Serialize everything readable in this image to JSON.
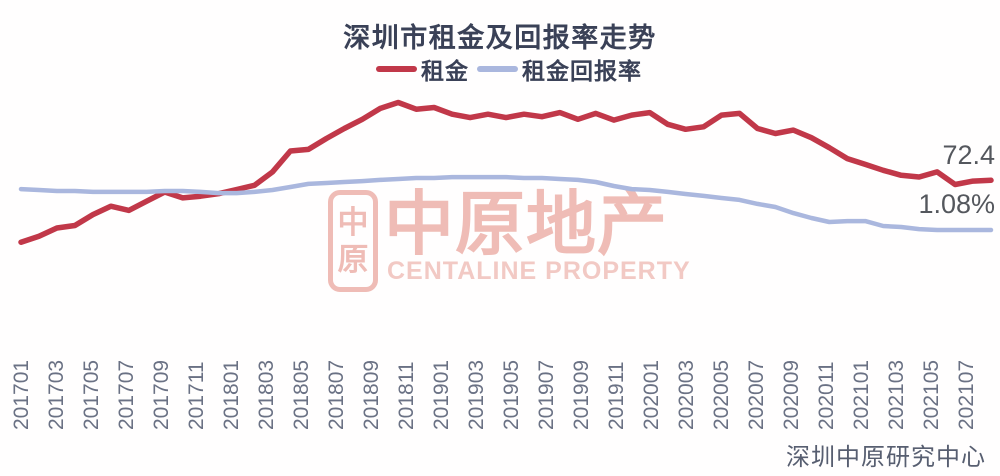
{
  "title": "深圳市租金及回报率走势",
  "legend": [
    {
      "label": "租金",
      "color": "#c13849"
    },
    {
      "label": "租金回报率",
      "color": "#aab7de"
    }
  ],
  "end_labels": {
    "rent": "72.4",
    "yield": "1.08%"
  },
  "watermark": {
    "logo_top": "中",
    "logo_bottom": "原",
    "name": "中原地产",
    "subtitle": "CENTALINE PROPERTY"
  },
  "footer": "深圳中原研究中心",
  "colors": {
    "title_text": "#3a4157",
    "rent_line": "#c13849",
    "yield_line": "#aab7de",
    "tick_text": "#6a7184",
    "watermark_pink": "#efbcb6"
  },
  "chart_data": {
    "type": "line",
    "title": "深圳市租金及回报率走势",
    "grid": false,
    "legend_position": "top",
    "months": [
      "201701",
      "201702",
      "201703",
      "201704",
      "201705",
      "201706",
      "201707",
      "201708",
      "201709",
      "201710",
      "201711",
      "201712",
      "201801",
      "201802",
      "201803",
      "201804",
      "201805",
      "201806",
      "201807",
      "201808",
      "201809",
      "201810",
      "201811",
      "201812",
      "201901",
      "201902",
      "201903",
      "201904",
      "201905",
      "201906",
      "201907",
      "201908",
      "201909",
      "201910",
      "201911",
      "201912",
      "202001",
      "202002",
      "202003",
      "202004",
      "202005",
      "202006",
      "202007",
      "202008",
      "202009",
      "202010",
      "202011",
      "202012",
      "202101",
      "202102",
      "202103",
      "202104",
      "202105",
      "202106",
      "202107"
    ],
    "x_tick_labels": [
      "201701",
      "201703",
      "201705",
      "201707",
      "201709",
      "201711",
      "201801",
      "201803",
      "201805",
      "201807",
      "201809",
      "201811",
      "201901",
      "201903",
      "201905",
      "201907",
      "201909",
      "201911",
      "202001",
      "202003",
      "202005",
      "202007",
      "202009",
      "202011",
      "202101",
      "202103",
      "202105",
      "202107"
    ],
    "series": [
      {
        "name": "租金",
        "axis": "rent",
        "color": "#c13849",
        "end_label": "72.4",
        "values": [
          65.0,
          65.7,
          66.7,
          67.0,
          68.3,
          69.3,
          68.8,
          69.9,
          71.0,
          70.3,
          70.5,
          70.8,
          71.3,
          71.8,
          73.4,
          75.9,
          76.1,
          77.4,
          78.6,
          79.7,
          81.0,
          81.7,
          80.9,
          81.1,
          80.3,
          79.9,
          80.3,
          79.9,
          80.3,
          80.0,
          80.5,
          79.7,
          80.4,
          79.6,
          80.2,
          80.5,
          79.1,
          78.5,
          78.8,
          80.2,
          80.4,
          78.6,
          78.0,
          78.4,
          77.5,
          76.3,
          75.0,
          74.3,
          73.6,
          73.0,
          72.8,
          73.4,
          71.9,
          72.3,
          72.4
        ]
      },
      {
        "name": "租金回报率",
        "axis": "yield",
        "color": "#aab7de",
        "end_label": "1.08%",
        "values": [
          1.254,
          1.25,
          1.246,
          1.246,
          1.242,
          1.242,
          1.242,
          1.242,
          1.246,
          1.246,
          1.242,
          1.237,
          1.237,
          1.242,
          1.25,
          1.263,
          1.276,
          1.28,
          1.284,
          1.288,
          1.293,
          1.297,
          1.301,
          1.301,
          1.305,
          1.305,
          1.305,
          1.305,
          1.301,
          1.301,
          1.297,
          1.293,
          1.284,
          1.267,
          1.254,
          1.25,
          1.242,
          1.233,
          1.225,
          1.216,
          1.208,
          1.191,
          1.178,
          1.152,
          1.131,
          1.114,
          1.118,
          1.118,
          1.097,
          1.093,
          1.084,
          1.08,
          1.08,
          1.08,
          1.08
        ]
      }
    ],
    "ylim_rent": [
      54.5,
      82.6
    ],
    "ylim_yield": [
      0.655,
      1.654
    ]
  }
}
